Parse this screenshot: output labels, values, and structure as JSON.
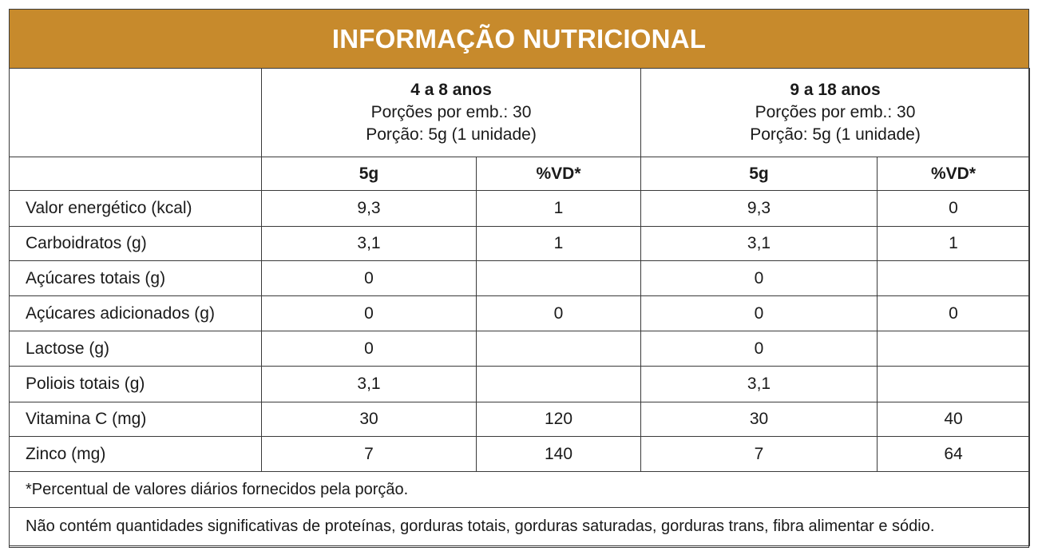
{
  "title": "INFORMAÇÃO NUTRICIONAL",
  "groups": [
    {
      "label": "4 a 8 anos",
      "portions": "Porções por emb.: 30",
      "portion": "Porção: 5g (1 unidade)"
    },
    {
      "label": "9 a 18 anos",
      "portions": "Porções por emb.: 30",
      "portion": "Porção: 5g (1 unidade)"
    }
  ],
  "columns": [
    "5g",
    "%VD*",
    "5g",
    "%VD*"
  ],
  "rows": [
    {
      "label": "Valor energético (kcal)",
      "v": [
        "9,3",
        "1",
        "9,3",
        "0"
      ]
    },
    {
      "label": "Carboidratos (g)",
      "v": [
        "3,1",
        "1",
        "3,1",
        "1"
      ]
    },
    {
      "label": "Açúcares totais (g)",
      "v": [
        "0",
        "",
        "0",
        ""
      ]
    },
    {
      "label": "Açúcares adicionados (g)",
      "v": [
        "0",
        "0",
        "0",
        "0"
      ]
    },
    {
      "label": "Lactose (g)",
      "v": [
        "0",
        "",
        "0",
        ""
      ]
    },
    {
      "label": "Poliois totais (g)",
      "v": [
        "3,1",
        "",
        "3,1",
        ""
      ]
    },
    {
      "label": "Vitamina C (mg)",
      "v": [
        "30",
        "120",
        "30",
        "40"
      ]
    },
    {
      "label": "Zinco (mg)",
      "v": [
        "7",
        "140",
        "7",
        "64"
      ]
    }
  ],
  "footnotes": [
    "*Percentual de valores diários fornecidos pela porção.",
    "Não contém quantidades significativas de proteínas, gorduras totais, gorduras saturadas, gorduras trans, fibra alimentar e sódio."
  ],
  "colors": {
    "header_bg": "#c78a2c",
    "header_text": "#ffffff",
    "border": "#3a3a3a"
  }
}
